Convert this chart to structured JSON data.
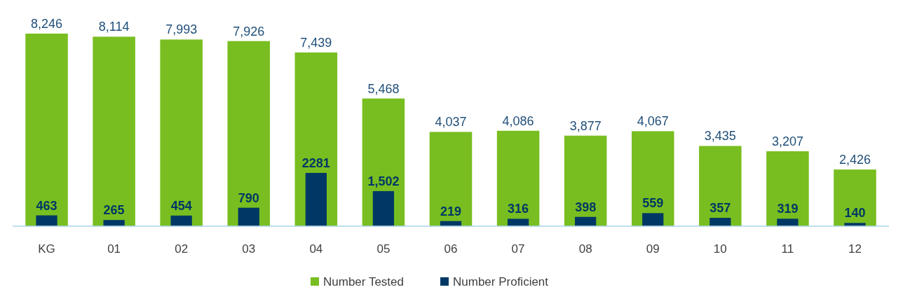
{
  "chart_data": {
    "type": "bar",
    "categories": [
      "KG",
      "01",
      "02",
      "03",
      "04",
      "05",
      "06",
      "07",
      "08",
      "09",
      "10",
      "11",
      "12"
    ],
    "series": [
      {
        "name": "Number Tested",
        "color": "#78be20",
        "values": [
          8246,
          8114,
          7993,
          7926,
          7439,
          5468,
          4037,
          4086,
          3877,
          4067,
          3435,
          3207,
          2426
        ],
        "value_labels": [
          "8,246",
          "8,114",
          "7,993",
          "7,926",
          "7,439",
          "5,468",
          "4,037",
          "4,086",
          "3,877",
          "4,067",
          "3,435",
          "3,207",
          "2,426"
        ]
      },
      {
        "name": "Number Proficient",
        "color": "#003865",
        "values": [
          463,
          265,
          454,
          790,
          2281,
          1502,
          219,
          316,
          398,
          559,
          357,
          319,
          140
        ],
        "value_labels": [
          "463",
          "265",
          "454",
          "790",
          "2281",
          "1,502",
          "219",
          "316",
          "398",
          "559",
          "357",
          "319",
          "140"
        ]
      }
    ],
    "legend": "bottom"
  }
}
